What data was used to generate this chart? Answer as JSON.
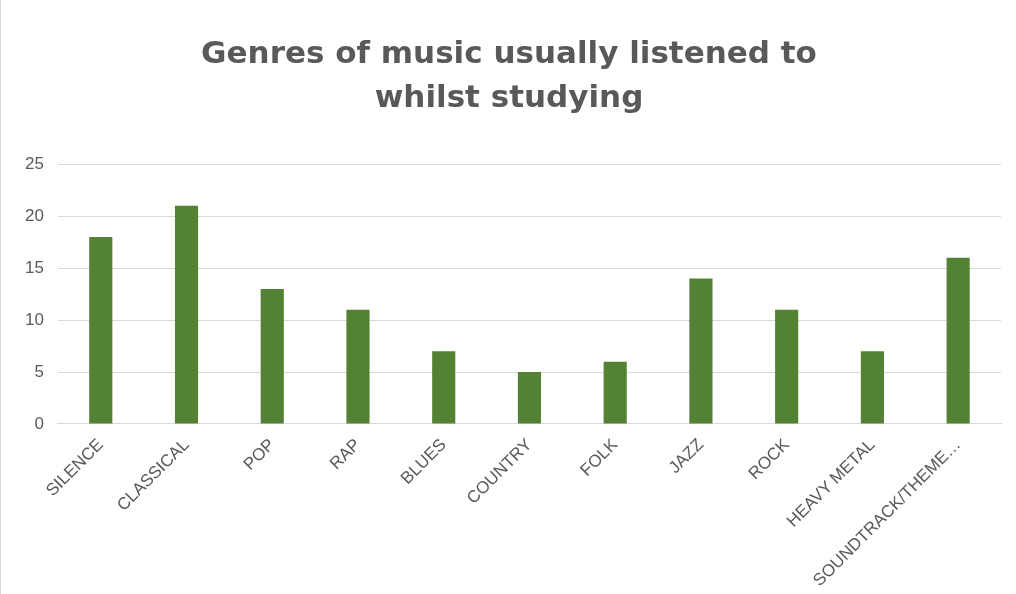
{
  "chart_data": {
    "type": "bar",
    "title": "Genres of music usually listened to whilst studying",
    "categories": [
      "SILENCE",
      "CLASSICAL",
      "POP",
      "RAP",
      "BLUES",
      "COUNTRY",
      "FOLK",
      "JAZZ",
      "ROCK",
      "HEAVY METAL",
      "SOUNDTRACK/THEME…"
    ],
    "values": [
      18,
      21,
      13,
      11,
      7,
      5,
      6,
      14,
      11,
      7,
      16
    ],
    "color": "#548235",
    "ylim": [
      0,
      25
    ],
    "yticks": [
      0,
      5,
      10,
      15,
      20,
      25
    ],
    "grid": "y",
    "legend": false
  }
}
